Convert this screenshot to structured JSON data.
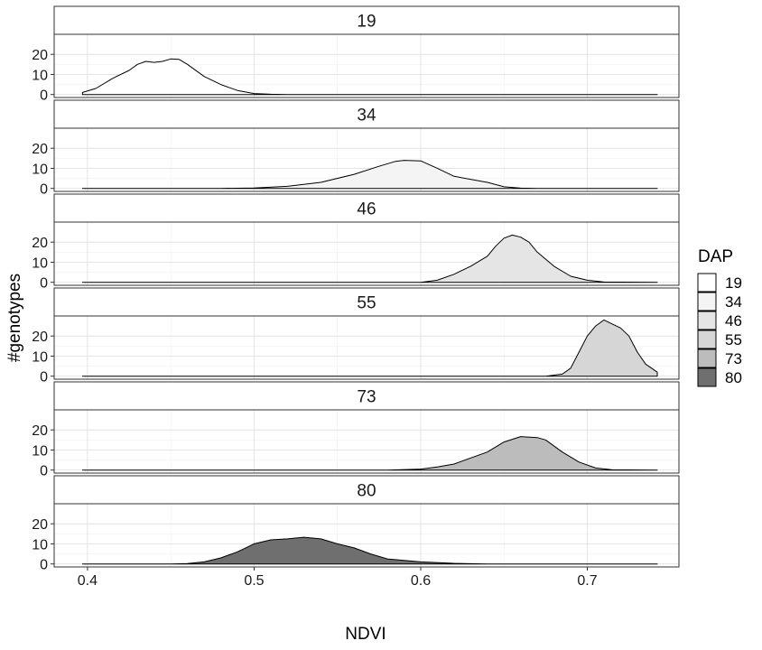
{
  "chart_data": {
    "type": "area",
    "xlabel": "NDVI",
    "ylabel": "#genotypes",
    "xlim": [
      0.38,
      0.755
    ],
    "ylim": [
      -1.5,
      30
    ],
    "x_ticks": [
      "0.4",
      "0.5",
      "0.6",
      "0.7"
    ],
    "y_ticks": [
      "0",
      "10",
      "20"
    ],
    "grid": true,
    "legend": {
      "title": "DAP",
      "position": "right"
    },
    "facets": [
      {
        "label": "19",
        "fill": "#ffffff",
        "legend_label": "19",
        "points": [
          [
            0.397,
            1
          ],
          [
            0.405,
            3
          ],
          [
            0.415,
            8
          ],
          [
            0.425,
            12
          ],
          [
            0.43,
            15
          ],
          [
            0.435,
            16.5
          ],
          [
            0.44,
            16
          ],
          [
            0.445,
            16.5
          ],
          [
            0.45,
            17.7
          ],
          [
            0.455,
            17.5
          ],
          [
            0.46,
            15
          ],
          [
            0.47,
            9
          ],
          [
            0.48,
            5
          ],
          [
            0.49,
            2
          ],
          [
            0.5,
            0.5
          ],
          [
            0.51,
            0.1
          ],
          [
            0.52,
            0
          ],
          [
            0.742,
            0
          ]
        ]
      },
      {
        "label": "34",
        "fill": "#f4f4f4",
        "legend_label": "34",
        "points": [
          [
            0.397,
            0
          ],
          [
            0.48,
            0
          ],
          [
            0.5,
            0.2
          ],
          [
            0.52,
            1
          ],
          [
            0.54,
            3
          ],
          [
            0.56,
            7
          ],
          [
            0.575,
            11
          ],
          [
            0.585,
            13.5
          ],
          [
            0.59,
            14
          ],
          [
            0.6,
            13.7
          ],
          [
            0.61,
            10
          ],
          [
            0.62,
            6
          ],
          [
            0.64,
            3
          ],
          [
            0.65,
            0.8
          ],
          [
            0.66,
            0.1
          ],
          [
            0.67,
            0
          ],
          [
            0.742,
            0
          ]
        ]
      },
      {
        "label": "46",
        "fill": "#e5e5e5",
        "legend_label": "46",
        "points": [
          [
            0.397,
            0
          ],
          [
            0.6,
            0
          ],
          [
            0.61,
            1
          ],
          [
            0.62,
            4
          ],
          [
            0.63,
            8
          ],
          [
            0.64,
            13
          ],
          [
            0.645,
            18
          ],
          [
            0.65,
            22
          ],
          [
            0.655,
            23.5
          ],
          [
            0.66,
            22.5
          ],
          [
            0.665,
            20
          ],
          [
            0.67,
            15
          ],
          [
            0.68,
            8
          ],
          [
            0.69,
            3
          ],
          [
            0.7,
            1
          ],
          [
            0.71,
            0.1
          ],
          [
            0.742,
            0
          ]
        ]
      },
      {
        "label": "55",
        "fill": "#d6d6d6",
        "legend_label": "55",
        "points": [
          [
            0.397,
            0
          ],
          [
            0.675,
            0
          ],
          [
            0.685,
            1
          ],
          [
            0.69,
            4
          ],
          [
            0.695,
            12
          ],
          [
            0.7,
            20
          ],
          [
            0.705,
            25
          ],
          [
            0.71,
            28
          ],
          [
            0.715,
            26
          ],
          [
            0.72,
            24
          ],
          [
            0.725,
            20
          ],
          [
            0.73,
            12
          ],
          [
            0.735,
            6
          ],
          [
            0.742,
            2
          ]
        ]
      },
      {
        "label": "73",
        "fill": "#bcbcbc",
        "legend_label": "73",
        "points": [
          [
            0.397,
            0
          ],
          [
            0.58,
            0
          ],
          [
            0.6,
            0.5
          ],
          [
            0.61,
            1.5
          ],
          [
            0.62,
            3
          ],
          [
            0.63,
            6
          ],
          [
            0.64,
            9
          ],
          [
            0.65,
            14
          ],
          [
            0.66,
            16.7
          ],
          [
            0.67,
            16.2
          ],
          [
            0.675,
            15
          ],
          [
            0.685,
            9
          ],
          [
            0.695,
            4
          ],
          [
            0.705,
            1
          ],
          [
            0.715,
            0.1
          ],
          [
            0.742,
            0
          ]
        ]
      },
      {
        "label": "80",
        "fill": "#6f6f6f",
        "legend_label": "80",
        "points": [
          [
            0.397,
            0
          ],
          [
            0.45,
            0
          ],
          [
            0.46,
            0.2
          ],
          [
            0.47,
            1
          ],
          [
            0.48,
            3
          ],
          [
            0.49,
            6
          ],
          [
            0.5,
            10
          ],
          [
            0.51,
            12
          ],
          [
            0.52,
            12.5
          ],
          [
            0.53,
            13.3
          ],
          [
            0.54,
            12.5
          ],
          [
            0.55,
            10
          ],
          [
            0.56,
            8
          ],
          [
            0.57,
            5
          ],
          [
            0.58,
            2.5
          ],
          [
            0.6,
            1
          ],
          [
            0.62,
            0.3
          ],
          [
            0.64,
            0
          ],
          [
            0.742,
            0
          ]
        ]
      }
    ]
  }
}
